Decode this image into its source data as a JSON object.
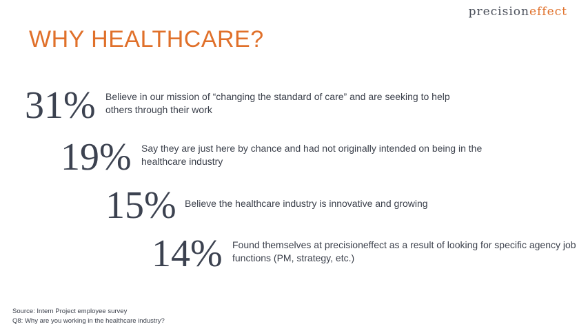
{
  "logo": {
    "part1": "precision",
    "part2": "effect"
  },
  "title": "WHY HEALTHCARE?",
  "stats": [
    {
      "pct": "31%",
      "text": "Believe in our mission of “changing the standard of care” and are seeking to help others through their work"
    },
    {
      "pct": "19%",
      "text": "Say they are just here by chance and had not originally intended on being in the healthcare industry"
    },
    {
      "pct": "15%",
      "text": "Believe the healthcare industry is innovative and growing"
    },
    {
      "pct": "14%",
      "text": "Found themselves at precisioneffect as a result of looking for specific agency job functions (PM, strategy, etc.)"
    }
  ],
  "source": {
    "line1": "Source: Intern Project employee survey",
    "line2": "Q8: Why are you working in the healthcare industry?"
  },
  "colors": {
    "accent": "#e0702a",
    "text": "#3a3f4a"
  }
}
